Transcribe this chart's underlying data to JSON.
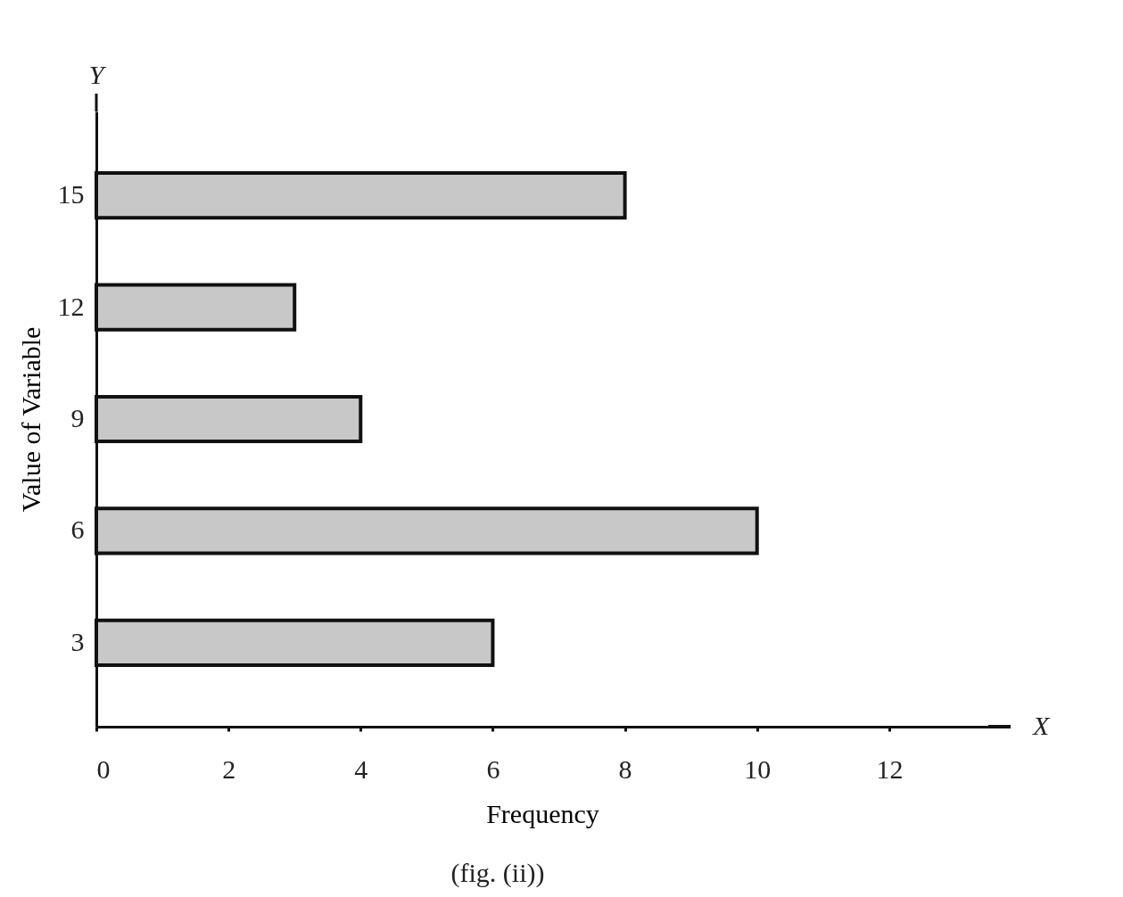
{
  "chart_data": {
    "type": "bar",
    "orientation": "horizontal",
    "categories": [
      "15",
      "12",
      "9",
      "6",
      "3"
    ],
    "values": [
      8,
      3,
      4,
      10,
      6
    ],
    "color": "#c8c8c8",
    "xlabel": "Frequency",
    "ylabel": "Value of Variable",
    "xlim": [
      0,
      13.5
    ],
    "xticks": [
      0,
      2,
      4,
      6,
      8,
      10,
      12
    ],
    "grid": false,
    "annotations": [
      "Y",
      "X",
      "(fig. (ii))"
    ]
  }
}
